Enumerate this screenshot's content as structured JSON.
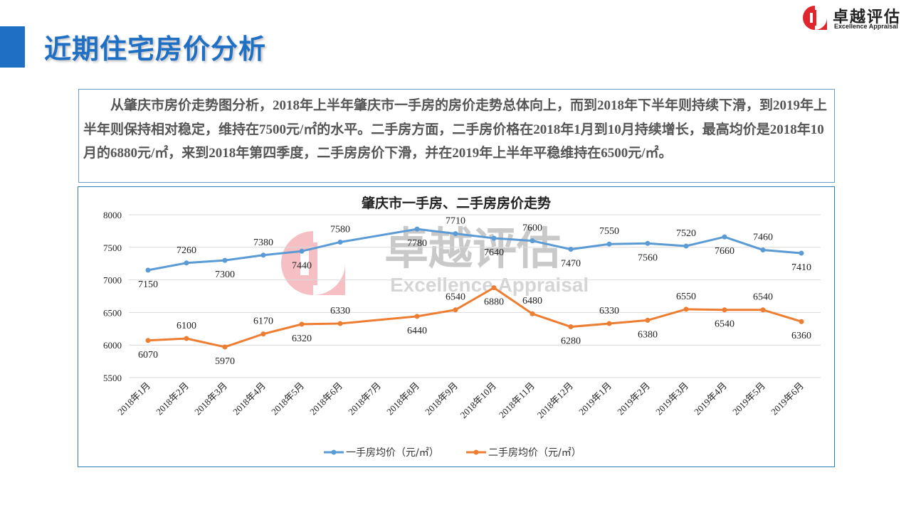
{
  "header": {
    "title": "近期住宅房价分析"
  },
  "logo": {
    "cn": "卓越评估",
    "en": "Excellence Appraisal"
  },
  "watermark": {
    "cn": "卓越评估",
    "en": "Excellence Appraisal"
  },
  "summary": "从肇庆市房价走势图分析，2018年上半年肇庆市一手房的房价走势总体向上，而到2018年下半年则持续下滑，到2019年上半年则保持相对稳定，维持在7500元/㎡的水平。二手房方面，二手房价格在2018年1月到10月持续增长，最高均价是2018年10月的6880元/㎡，来到2018年第四季度，二手房房价下滑，并在2019年上半年平稳维持在6500元/㎡。",
  "chart_data": {
    "type": "line",
    "title": "肇庆市一手房、二手房房价走势",
    "categories": [
      "2018年1月",
      "2018年2月",
      "2018年3月",
      "2018年4月",
      "2018年5月",
      "2018年6月",
      "2018年7月",
      "2018年8月",
      "2018年9月",
      "2018年10月",
      "2018年11月",
      "2018年12月",
      "2019年1月",
      "2019年2月",
      "2019年3月",
      "2019年4月",
      "2019年5月",
      "2019年6月"
    ],
    "ylim": [
      5500,
      8000
    ],
    "yticks": [
      5500,
      6000,
      6500,
      7000,
      7500,
      8000
    ],
    "grid": true,
    "legend": "bottom",
    "series": [
      {
        "name": "一手房均价（元/㎡）",
        "color": "#5b9bd5",
        "values": [
          7150,
          7260,
          7300,
          7380,
          7440,
          7580,
          null,
          7780,
          7710,
          7640,
          7600,
          7470,
          7550,
          7560,
          7520,
          7660,
          7460,
          7410
        ],
        "label_pos": [
          "below",
          "above",
          "below",
          "above",
          "below",
          "above",
          null,
          "below",
          "above",
          "below",
          "above",
          "below",
          "above",
          "below",
          "above",
          "below",
          "above",
          "below"
        ]
      },
      {
        "name": "二手房均价（元/㎡）",
        "color": "#ed7d31",
        "values": [
          6070,
          6100,
          5970,
          6170,
          6320,
          6330,
          null,
          6440,
          6540,
          6880,
          6480,
          6280,
          6330,
          6380,
          6550,
          6540,
          6540,
          6360
        ],
        "label_pos": [
          "below",
          "above",
          "below",
          "above",
          "below",
          "above",
          null,
          "below",
          "above",
          "below",
          "above",
          "below",
          "above",
          "below",
          "above",
          "below",
          "above",
          "below"
        ]
      }
    ]
  }
}
